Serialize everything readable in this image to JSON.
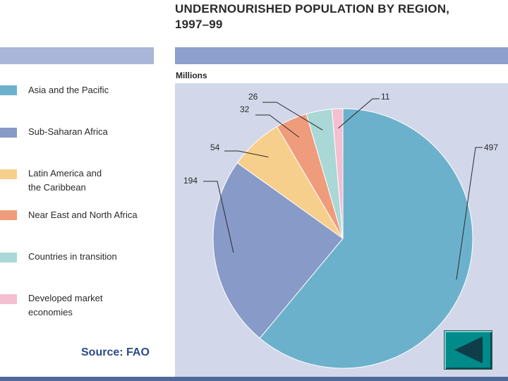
{
  "chart_data": {
    "type": "pie",
    "title": "UNDERNOURISHED POPULATION BY REGION, 1997–99",
    "unit": "Millions",
    "categories": [
      "Asia and the Pacific",
      "Sub-Saharan Africa",
      "Latin America and the Caribbean",
      "Near East and North Africa",
      "Countries in transition",
      "Developed market economies"
    ],
    "values": [
      497,
      194,
      54,
      32,
      26,
      11
    ],
    "value_labels": [
      "497",
      "194",
      "54",
      "32",
      "26",
      "11"
    ],
    "legend": [
      {
        "label1": "Asia and the Pacific",
        "label2": "",
        "color": "#6cb1cc"
      },
      {
        "label1": "Sub-Saharan Africa",
        "label2": "",
        "color": "#879ac8"
      },
      {
        "label1": "Latin America and",
        "label2": "the Caribbean",
        "color": "#f7cf8c"
      },
      {
        "label1": "Near East and North Africa",
        "label2": "",
        "color": "#ef9c7c"
      },
      {
        "label1": "Countries in transition",
        "label2": "",
        "color": "#a9d8d6"
      },
      {
        "label1": "Developed market",
        "label2": "economies",
        "color": "#f4bfd0"
      }
    ],
    "legend_placement": "left"
  },
  "header": {
    "title_line1": "UNDERNOURISHED POPULATION BY REGION,",
    "title_line2": "1997–99",
    "unit": "Millions"
  },
  "source": "Source: FAO",
  "nav": {
    "icon": "triangle-left-icon"
  }
}
